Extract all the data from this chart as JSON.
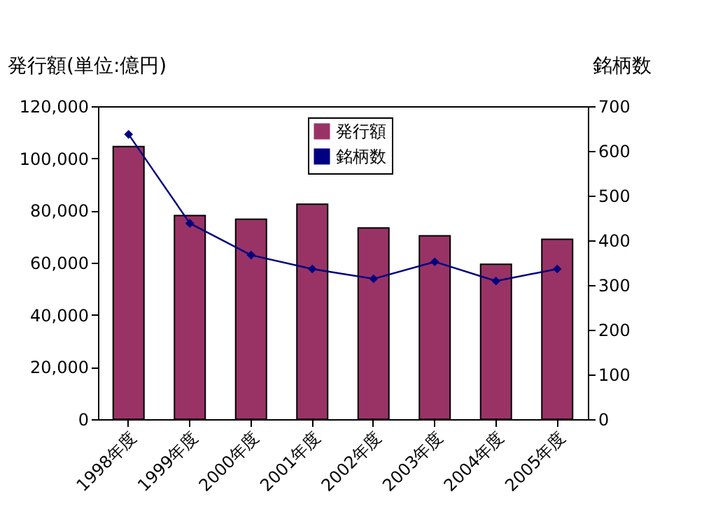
{
  "chart_data": {
    "type": "bar",
    "categories": [
      "1998年度",
      "1999年度",
      "2000年度",
      "2001年度",
      "2002年度",
      "2003年度",
      "2004年度",
      "2005年度"
    ],
    "ylabel": "発行額(単位:億円)",
    "y2label": "銘柄数",
    "ylim": [
      0,
      120000
    ],
    "yticks": [
      0,
      {
        "value": 20000,
        "label": "20,000"
      },
      {
        "value": 40000,
        "label": "40,000"
      },
      {
        "value": 60000,
        "label": "60,000"
      },
      {
        "value": 80000,
        "label": "80,000"
      },
      {
        "value": 100000,
        "label": "100,000"
      },
      {
        "value": 120000,
        "label": "120,000"
      }
    ],
    "y2lim": [
      0,
      700
    ],
    "y2ticks": [
      0,
      100,
      200,
      300,
      400,
      500,
      600,
      700
    ],
    "grid": false,
    "legend": "top",
    "marker": "diamond",
    "line_style": "solid",
    "series": [
      {
        "name": "発行額",
        "color": "#993366",
        "values": [
          104500,
          78100,
          76700,
          82400,
          73300,
          70300,
          59400,
          69000
        ]
      },
      {
        "name": "銘柄数",
        "type": "line",
        "axis": "y2",
        "color": "#000080",
        "values": [
          637,
          438,
          367,
          336,
          314,
          352,
          309,
          336
        ]
      }
    ]
  }
}
